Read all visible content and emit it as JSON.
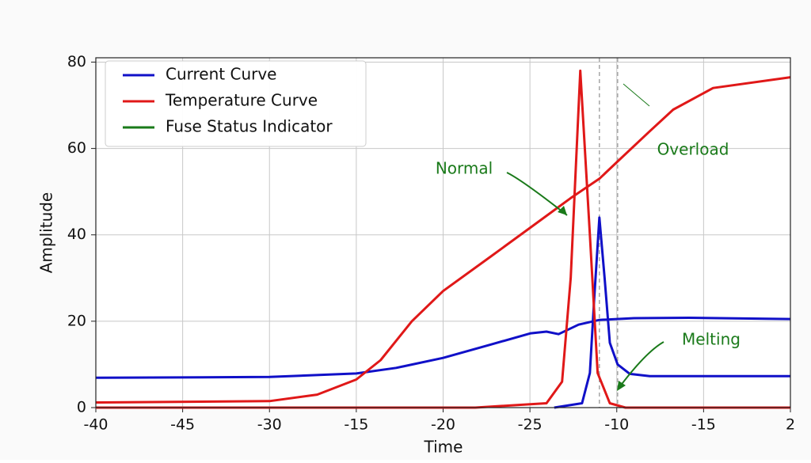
{
  "chart_data": {
    "type": "line",
    "xlabel": "Time",
    "ylabel": "Amplitude",
    "xlim": [
      0,
      8
    ],
    "xticks": [
      {
        "value": 0,
        "label": "-40"
      },
      {
        "value": 1,
        "label": "-45"
      },
      {
        "value": 2,
        "label": "-30"
      },
      {
        "value": 3,
        "label": "-15"
      },
      {
        "value": 4,
        "label": "-20"
      },
      {
        "value": 5,
        "label": "-25"
      },
      {
        "value": 6,
        "label": "-10"
      },
      {
        "value": 7,
        "label": "-15"
      },
      {
        "value": 8,
        "label": "2"
      }
    ],
    "ylim": [
      0,
      81
    ],
    "yticks": [
      0,
      20,
      40,
      60,
      80
    ],
    "grid": true,
    "legend": "upper left",
    "vlines": [
      5.8,
      6.01
    ],
    "series": [
      {
        "name": "Current Curve",
        "color": "#1010c8",
        "x": [
          0,
          2,
          3,
          3.46,
          4,
          4.55,
          5.01,
          5.19,
          5.33,
          5.56,
          5.8,
          6.2,
          6.83,
          8,
          null,
          5.28,
          5.6,
          5.69,
          5.74,
          5.8,
          5.86,
          5.92,
          6.01,
          6.15,
          6.38,
          8
        ],
        "values": [
          6.9,
          7.1,
          7.9,
          9.2,
          11.5,
          14.6,
          17.2,
          17.6,
          17.0,
          19.2,
          20.3,
          20.7,
          20.8,
          20.5,
          null,
          0,
          1,
          8,
          25,
          44,
          30,
          15,
          10,
          7.8,
          7.3,
          7.3
        ]
      },
      {
        "name": "Temperature Curve",
        "color": "#e01818",
        "x": [
          0,
          2,
          2.55,
          3,
          3.28,
          3.64,
          4,
          4.55,
          5,
          5.47,
          5.8,
          6.01,
          6.38,
          6.65,
          7.11,
          8,
          null,
          0,
          4.37,
          5.19,
          5.37,
          5.47,
          5.58,
          5.69,
          5.78,
          5.92,
          6.1,
          8
        ],
        "values": [
          1.2,
          1.5,
          3,
          6.5,
          11,
          20,
          27,
          35,
          41.6,
          48.5,
          53,
          57,
          64,
          69,
          74,
          76.5,
          null,
          0,
          0,
          1,
          6,
          30,
          78,
          40,
          8,
          1,
          0,
          0
        ]
      },
      {
        "name": "Fuse Status Indicator",
        "color": "#1a7a1a",
        "x": [],
        "values": []
      }
    ],
    "annotations": [
      "Normal",
      "Overload",
      "Melting"
    ],
    "annotation_color": "#1a7a1a"
  }
}
